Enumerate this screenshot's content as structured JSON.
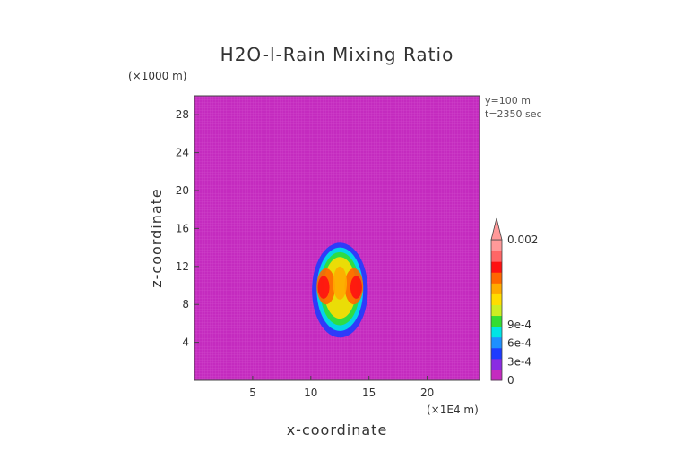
{
  "chart_data": {
    "type": "heatmap",
    "title": "H2O-l-Rain Mixing Ratio",
    "xlabel": "x-coordinate",
    "ylabel": "z-coordinate",
    "x_unit": "(×1E4 m)",
    "y_unit": "(×1000 m)",
    "xlim": [
      0,
      24.5
    ],
    "ylim": [
      0,
      30
    ],
    "x_ticks": [
      5,
      10,
      15,
      20
    ],
    "y_ticks": [
      4,
      8,
      12,
      16,
      20,
      24,
      28
    ],
    "annotations": [
      "y=100 m",
      "t=2350 sec"
    ],
    "background_value": 0,
    "background_color": "#c42bbf",
    "colorbar": {
      "labels": [
        {
          "text": "0",
          "value": 0
        },
        {
          "text": "3e-4",
          "value": 0.0003
        },
        {
          "text": "6e-4",
          "value": 0.0006
        },
        {
          "text": "9e-4",
          "value": 0.0009
        },
        {
          "text": "0.002",
          "value": 0.002
        }
      ],
      "colors": [
        "#c42bbf",
        "#8a2be2",
        "#1e3cff",
        "#1e90ff",
        "#00e5e5",
        "#33dd33",
        "#ccee22",
        "#ffdd00",
        "#ffaa00",
        "#ff6600",
        "#ff1111",
        "#ff6666",
        "#ff9999"
      ]
    },
    "feature": {
      "description_free": true,
      "x_center": 12.5,
      "z_range": [
        4.5,
        14.5
      ],
      "max_value_region": "0.0009-0.002"
    }
  }
}
